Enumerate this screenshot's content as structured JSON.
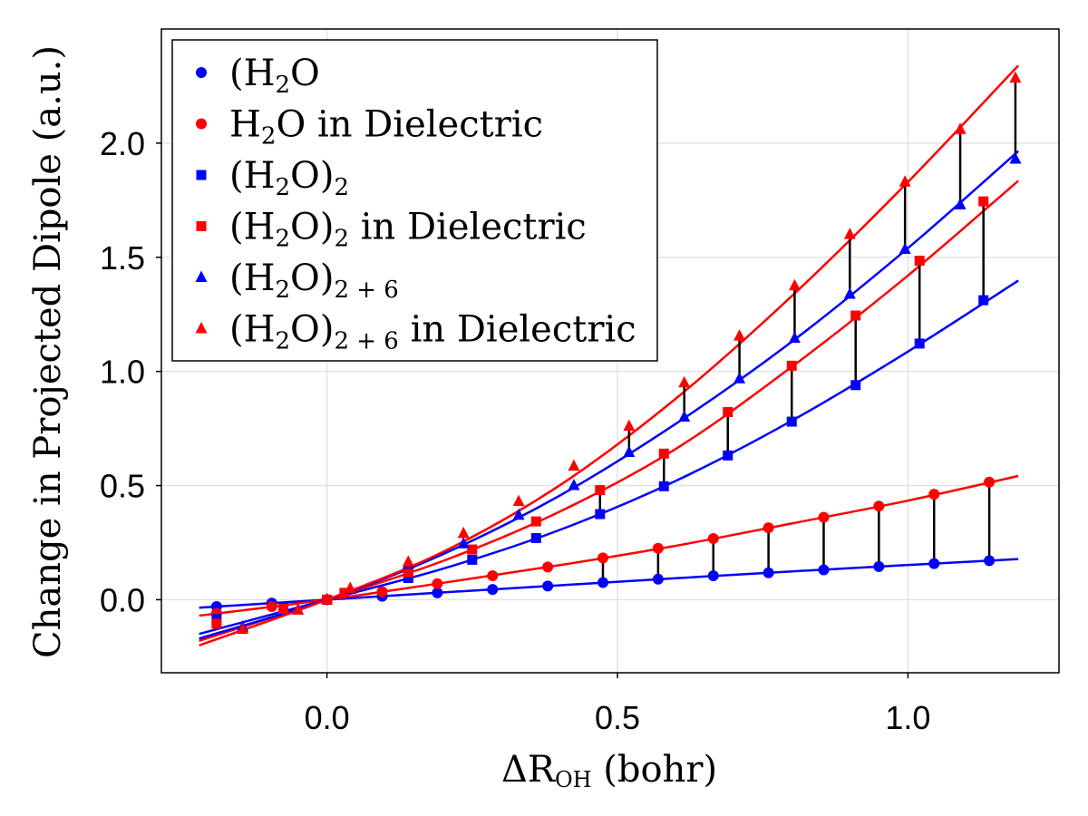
{
  "chart_data": {
    "type": "scatter",
    "title": "",
    "xlabel": "ΔROH (bohr)",
    "xlabel_parts": {
      "delta": "Δ",
      "symbol": "R",
      "subscript": "OH",
      "unit": " (bohr)"
    },
    "ylabel": "Change in Projected Dipole (a.u.)",
    "xlim": [
      -0.285,
      1.26
    ],
    "ylim": [
      -0.32,
      2.5
    ],
    "xticks": [
      0.0,
      0.5,
      1.0
    ],
    "xtick_labels": [
      "0.0",
      "0.5",
      "1.0"
    ],
    "yticks": [
      0.0,
      0.5,
      1.0,
      1.5,
      2.0
    ],
    "ytick_labels": [
      "0.0",
      "0.5",
      "1.0",
      "1.5",
      "2.0"
    ],
    "grid": true,
    "legend_position": "top-left",
    "fit_lines": true,
    "difference_connectors": true,
    "series": [
      {
        "name": "H₂O",
        "legend": {
          "base": "(H",
          "sub1": "2",
          "mid": "O",
          "sub2": "",
          "suffix": ""
        },
        "color": "#0000ff",
        "marker": "circle",
        "x": [
          -0.19,
          -0.095,
          0.0,
          0.095,
          0.19,
          0.285,
          0.38,
          0.475,
          0.57,
          0.665,
          0.76,
          0.855,
          0.95,
          1.045,
          1.14
        ],
        "y": [
          -0.03,
          -0.015,
          0.0,
          0.015,
          0.03,
          0.045,
          0.06,
          0.075,
          0.09,
          0.105,
          0.118,
          0.131,
          0.145,
          0.158,
          0.171
        ],
        "fit_x": [
          -0.22,
          0.0,
          0.2,
          0.4,
          0.6,
          0.8,
          1.0,
          1.19
        ],
        "fit_y": [
          -0.035,
          0.0,
          0.032,
          0.063,
          0.094,
          0.124,
          0.152,
          0.178
        ]
      },
      {
        "name": "H₂O in Dielectric",
        "legend": {
          "base": "H",
          "sub1": "2",
          "mid": "O",
          "sub2": "",
          "suffix": " in Dielectric"
        },
        "color": "#ff0000",
        "marker": "circle",
        "x": [
          -0.19,
          -0.095,
          0.0,
          0.095,
          0.19,
          0.285,
          0.38,
          0.475,
          0.57,
          0.665,
          0.76,
          0.855,
          0.95,
          1.045,
          1.14
        ],
        "y": [
          -0.06,
          -0.03,
          0.0,
          0.035,
          0.07,
          0.105,
          0.143,
          0.183,
          0.225,
          0.268,
          0.315,
          0.361,
          0.41,
          0.462,
          0.515
        ],
        "fit_x": [
          -0.22,
          0.0,
          0.2,
          0.4,
          0.6,
          0.8,
          1.0,
          1.19
        ],
        "fit_y": [
          -0.07,
          0.0,
          0.074,
          0.151,
          0.236,
          0.334,
          0.434,
          0.542
        ]
      },
      {
        "name": "(H₂O)₂",
        "legend": {
          "base": "(H",
          "sub1": "2",
          "mid": "O)",
          "sub2": "2",
          "suffix": ""
        },
        "color": "#0000ff",
        "marker": "square",
        "x": [
          -0.19,
          -0.075,
          0.0,
          0.14,
          0.25,
          0.36,
          0.47,
          0.58,
          0.69,
          0.8,
          0.91,
          1.02,
          1.13
        ],
        "y": [
          -0.085,
          -0.035,
          0.0,
          0.095,
          0.175,
          0.27,
          0.375,
          0.497,
          0.632,
          0.78,
          0.94,
          1.122,
          1.312
        ],
        "fit_x": [
          -0.22,
          0.0,
          0.2,
          0.4,
          0.6,
          0.8,
          1.0,
          1.19
        ],
        "fit_y": [
          -0.15,
          0.0,
          0.136,
          0.305,
          0.52,
          0.784,
          1.087,
          1.398
        ]
      },
      {
        "name": "(H₂O)₂ in Dielectric",
        "legend": {
          "base": "(H",
          "sub1": "2",
          "mid": "O)",
          "sub2": "2",
          "suffix": " in Dielectric"
        },
        "color": "#ff0000",
        "marker": "square",
        "x": [
          -0.19,
          -0.075,
          0.0,
          0.03,
          0.14,
          0.25,
          0.36,
          0.47,
          0.58,
          0.69,
          0.8,
          0.91,
          1.02,
          1.13
        ],
        "y": [
          -0.105,
          -0.04,
          0.0,
          0.03,
          0.12,
          0.22,
          0.343,
          0.48,
          0.64,
          0.822,
          1.025,
          1.245,
          1.485,
          1.745
        ],
        "fit_x": [
          -0.22,
          0.0,
          0.2,
          0.4,
          0.6,
          0.8,
          1.0,
          1.19
        ],
        "fit_y": [
          -0.18,
          0.0,
          0.17,
          0.385,
          0.66,
          1.02,
          1.42,
          1.835
        ]
      },
      {
        "name": "(H₂O)₂₊₆",
        "legend": {
          "base": "(H",
          "sub1": "2",
          "mid": "O)",
          "sub2": "2 + 6",
          "suffix": ""
        },
        "color": "#0000ff",
        "marker": "triangle",
        "x": [
          -0.145,
          -0.05,
          0.0,
          0.04,
          0.14,
          0.235,
          0.33,
          0.425,
          0.52,
          0.615,
          0.71,
          0.805,
          0.9,
          0.995,
          1.09,
          1.185
        ],
        "y": [
          -0.12,
          -0.045,
          0.0,
          0.045,
          0.155,
          0.245,
          0.37,
          0.5,
          0.645,
          0.8,
          0.968,
          1.145,
          1.338,
          1.535,
          1.73,
          1.93
        ],
        "fit_x": [
          -0.22,
          0.0,
          0.2,
          0.4,
          0.6,
          0.8,
          1.0,
          1.19
        ],
        "fit_y": [
          -0.17,
          0.0,
          0.2,
          0.455,
          0.77,
          1.13,
          1.54,
          1.965
        ]
      },
      {
        "name": "(H₂O)₂₊₆ in Dielectric",
        "legend": {
          "base": "(H",
          "sub1": "2",
          "mid": "O)",
          "sub2": "2 + 6",
          "suffix": " in Dielectric"
        },
        "color": "#ff0000",
        "marker": "triangle",
        "x": [
          -0.145,
          -0.05,
          0.0,
          0.04,
          0.14,
          0.235,
          0.33,
          0.425,
          0.52,
          0.615,
          0.71,
          0.805,
          0.9,
          0.995,
          1.09,
          1.185
        ],
        "y": [
          -0.13,
          -0.045,
          0.0,
          0.05,
          0.165,
          0.29,
          0.43,
          0.585,
          0.76,
          0.95,
          1.155,
          1.375,
          1.6,
          1.83,
          2.06,
          2.285
        ],
        "fit_x": [
          -0.22,
          0.0,
          0.2,
          0.4,
          0.6,
          0.8,
          1.0,
          1.19
        ],
        "fit_y": [
          -0.2,
          0.0,
          0.21,
          0.5,
          0.88,
          1.33,
          1.83,
          2.34
        ]
      }
    ],
    "connector_pairs": [
      [
        0,
        1
      ],
      [
        2,
        3
      ],
      [
        4,
        5
      ]
    ],
    "connector_min_x": 0.45
  }
}
